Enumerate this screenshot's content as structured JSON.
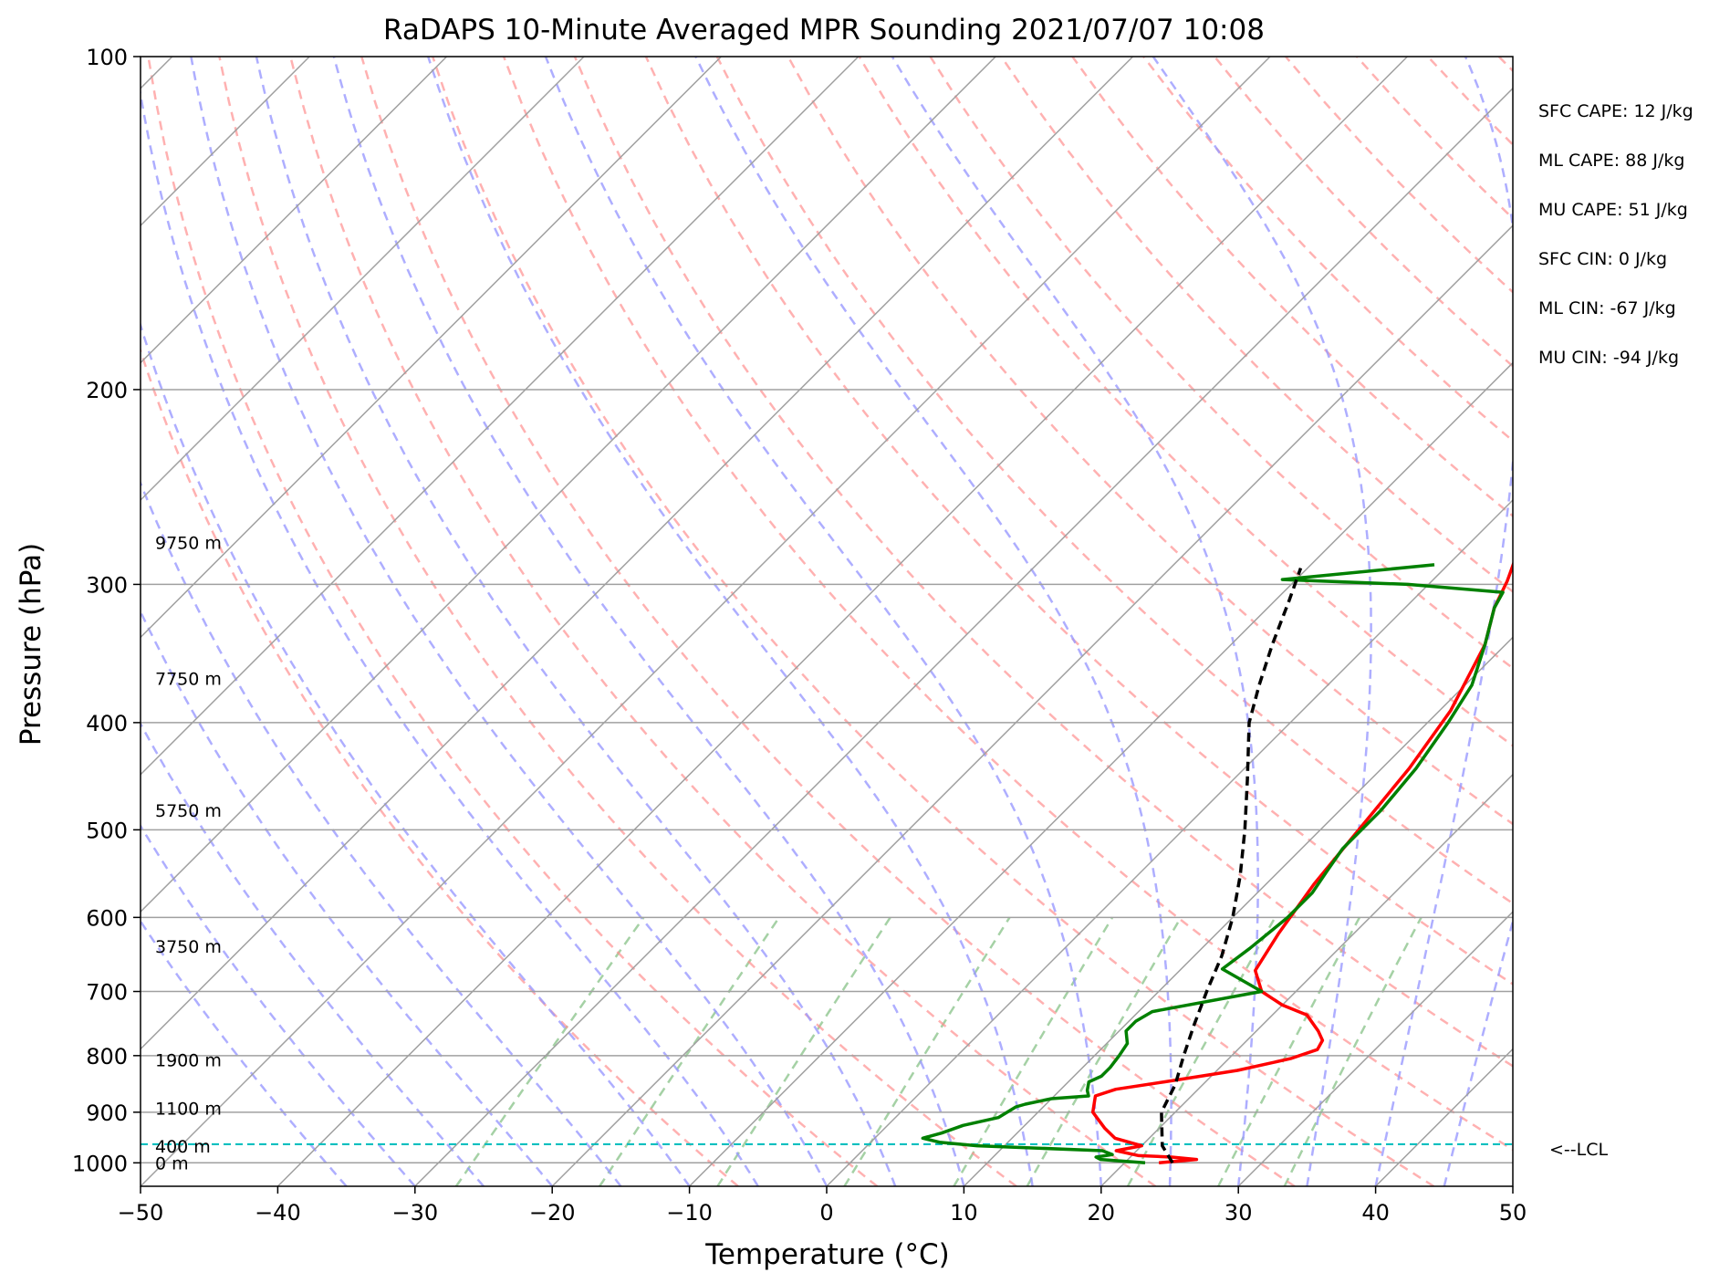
{
  "chart_data": {
    "type": "line",
    "title": "RaDAPS 10-Minute Averaged MPR Sounding 2021/07/07 10:08",
    "xlabel": "Temperature (°C)",
    "ylabel": "Pressure (hPa)",
    "xlim": [
      -50,
      50
    ],
    "ylim": [
      1050,
      100
    ],
    "y_scale": "log",
    "grid": true,
    "skew_t": true,
    "x_ticks": [
      -50,
      -40,
      -30,
      -20,
      -10,
      0,
      10,
      20,
      30,
      40,
      50
    ],
    "x_tick_labels": [
      "−50",
      "−40",
      "−30",
      "−20",
      "−10",
      "0",
      "10",
      "20",
      "30",
      "40",
      "50"
    ],
    "y_ticks": [
      100,
      200,
      300,
      400,
      500,
      600,
      700,
      800,
      900,
      1000
    ],
    "y_tick_labels": [
      "100",
      "200",
      "300",
      "400",
      "500",
      "600",
      "700",
      "800",
      "900",
      "1000"
    ],
    "series": [
      {
        "role": "temperature",
        "color": "#ff0000",
        "points": [
          [
            1000,
            22.5
          ],
          [
            993,
            25.0
          ],
          [
            988,
            23.0
          ],
          [
            985,
            20.5
          ],
          [
            975,
            18.5
          ],
          [
            965,
            20.0
          ],
          [
            950,
            17.5
          ],
          [
            930,
            16.0
          ],
          [
            900,
            14.0
          ],
          [
            870,
            13.0
          ],
          [
            858,
            14.0
          ],
          [
            845,
            17.0
          ],
          [
            825,
            21.5
          ],
          [
            805,
            24.5
          ],
          [
            790,
            25.8
          ],
          [
            775,
            25.5
          ],
          [
            760,
            24.5
          ],
          [
            735,
            22.5
          ],
          [
            720,
            20.0
          ],
          [
            700,
            17.5
          ],
          [
            670,
            15.5
          ],
          [
            620,
            14.5
          ],
          [
            560,
            13.5
          ],
          [
            500,
            12.8
          ],
          [
            440,
            12.0
          ],
          [
            390,
            10.8
          ],
          [
            340,
            8.5
          ],
          [
            315,
            6.5
          ],
          [
            298,
            5.5
          ],
          [
            285,
            4.5
          ]
        ]
      },
      {
        "role": "dewpoint",
        "color": "#008000",
        "points": [
          [
            1000,
            21.5
          ],
          [
            993,
            18.0
          ],
          [
            988,
            17.5
          ],
          [
            983,
            18.5
          ],
          [
            975,
            17.5
          ],
          [
            965,
            8.0
          ],
          [
            958,
            5.0
          ],
          [
            950,
            3.5
          ],
          [
            940,
            4.5
          ],
          [
            925,
            5.5
          ],
          [
            910,
            7.5
          ],
          [
            890,
            8.0
          ],
          [
            885,
            8.5
          ],
          [
            875,
            10.0
          ],
          [
            870,
            12.5
          ],
          [
            860,
            12.0
          ],
          [
            845,
            11.5
          ],
          [
            835,
            12.0
          ],
          [
            820,
            12.0
          ],
          [
            800,
            11.8
          ],
          [
            780,
            11.5
          ],
          [
            760,
            10.5
          ],
          [
            745,
            10.5
          ],
          [
            730,
            11.0
          ],
          [
            700,
            17.5
          ],
          [
            668,
            13.0
          ],
          [
            640,
            13.5
          ],
          [
            600,
            14.0
          ],
          [
            570,
            14.0
          ],
          [
            545,
            13.5
          ],
          [
            520,
            13.0
          ],
          [
            480,
            13.0
          ],
          [
            440,
            12.5
          ],
          [
            400,
            11.5
          ],
          [
            370,
            10.5
          ],
          [
            340,
            8.5
          ],
          [
            315,
            6.5
          ],
          [
            305,
            6.0
          ],
          [
            300,
            -1.5
          ],
          [
            297,
            -11.0
          ],
          [
            288,
            -1.0
          ]
        ]
      },
      {
        "role": "parcel",
        "color": "#000000",
        "points": [
          [
            1000,
            23.5
          ],
          [
            965,
            21.5
          ],
          [
            900,
            19.0
          ],
          [
            850,
            18.0
          ],
          [
            800,
            16.5
          ],
          [
            750,
            15.0
          ],
          [
            700,
            13.5
          ],
          [
            650,
            12.0
          ],
          [
            600,
            10.0
          ],
          [
            550,
            7.5
          ],
          [
            500,
            4.5
          ],
          [
            450,
            1.0
          ],
          [
            400,
            -3.0
          ],
          [
            370,
            -5.0
          ],
          [
            340,
            -7.0
          ],
          [
            310,
            -9.0
          ],
          [
            290,
            -10.5
          ]
        ]
      }
    ],
    "height_labels": [
      {
        "text": "9750 m",
        "pressure": 275
      },
      {
        "text": "7750 m",
        "pressure": 365
      },
      {
        "text": "5750 m",
        "pressure": 480
      },
      {
        "text": "3750 m",
        "pressure": 637
      },
      {
        "text": "1900 m",
        "pressure": 807
      },
      {
        "text": "1100 m",
        "pressure": 893
      },
      {
        "text": "400 m",
        "pressure": 966
      },
      {
        "text": "0 m",
        "pressure": 1000
      }
    ],
    "lcl": {
      "pressure": 962,
      "label": "<--LCL",
      "color": "#00bfbf"
    },
    "annotations": [
      "SFC CAPE: 12 J/kg",
      "ML CAPE: 88 J/kg",
      "MU CAPE: 51 J/kg",
      "SFC CIN: 0 J/kg",
      "ML CIN: -67 J/kg",
      "MU CIN: -94 J/kg"
    ],
    "colors": {
      "isotherm": "#a0a0a0",
      "dry_adiabat": "#ff9090",
      "moist_adiabat": "#9a9aff",
      "mixing_ratio": "#8fc58f",
      "isobar": "#a0a0a0"
    }
  }
}
